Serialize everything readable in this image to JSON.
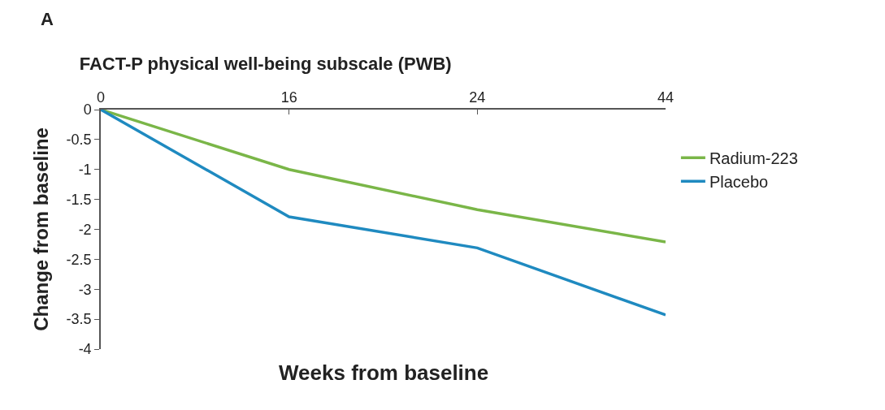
{
  "chart_data": {
    "type": "line",
    "title": "FACT-P physical well-being subscale (PWB)",
    "xlabel": "Weeks from baseline",
    "ylabel": "Change from baseline",
    "annotations": [
      "A"
    ],
    "categories": [
      "0",
      "16",
      "24",
      "44"
    ],
    "series": [
      {
        "name": "Radium-223",
        "color": "#7ab648",
        "values": [
          0,
          -1.0,
          -1.67,
          -2.21
        ]
      },
      {
        "name": "Placebo",
        "color": "#1f8ac0",
        "values": [
          0,
          -1.79,
          -2.31,
          -3.43
        ]
      }
    ],
    "ylim": [
      -4,
      0
    ],
    "yticks": [
      {
        "value": -4,
        "label": "-4"
      },
      {
        "value": -3.5,
        "label": "-3.5"
      },
      {
        "value": -3,
        "label": "-3"
      },
      {
        "value": -2.5,
        "label": "-2.5"
      },
      {
        "value": -2,
        "label": "-2"
      },
      {
        "value": -1.5,
        "label": "-1.5"
      },
      {
        "value": -1,
        "label": "-1"
      },
      {
        "value": -0.5,
        "label": "-0.5"
      },
      0
    ],
    "legend": "right",
    "marker": "none",
    "line_style": "solid"
  }
}
